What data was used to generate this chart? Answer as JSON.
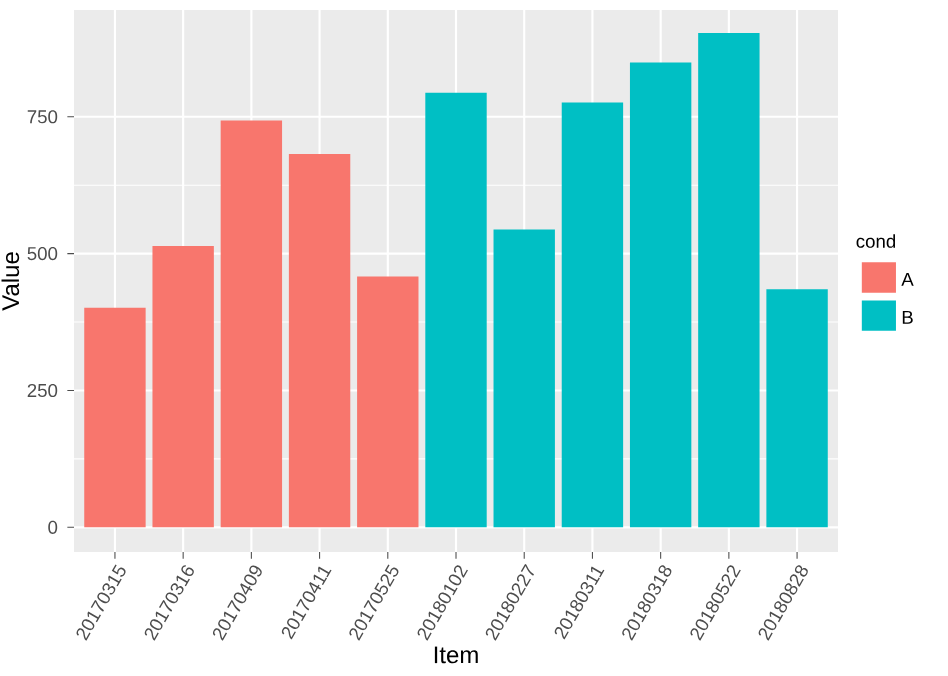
{
  "chart_data": {
    "type": "bar",
    "xlabel": "Item",
    "ylabel": "Value",
    "legend_title": "cond",
    "categories": [
      "20170315",
      "20170316",
      "20170409",
      "20170411",
      "20170525",
      "20180102",
      "20180227",
      "20180311",
      "20180318",
      "20180522",
      "20180828"
    ],
    "series": [
      {
        "name": "A",
        "color": "#f8766d",
        "values": [
          401,
          514,
          743,
          682,
          458,
          null,
          null,
          null,
          null,
          null,
          null
        ]
      },
      {
        "name": "B",
        "color": "#00bfc4",
        "values": [
          null,
          null,
          null,
          null,
          null,
          794,
          544,
          776,
          849,
          903,
          435
        ]
      }
    ],
    "ylim": [
      -45,
      945
    ],
    "yticks": [
      0,
      250,
      500,
      750
    ],
    "grid": true,
    "legend": "right"
  }
}
